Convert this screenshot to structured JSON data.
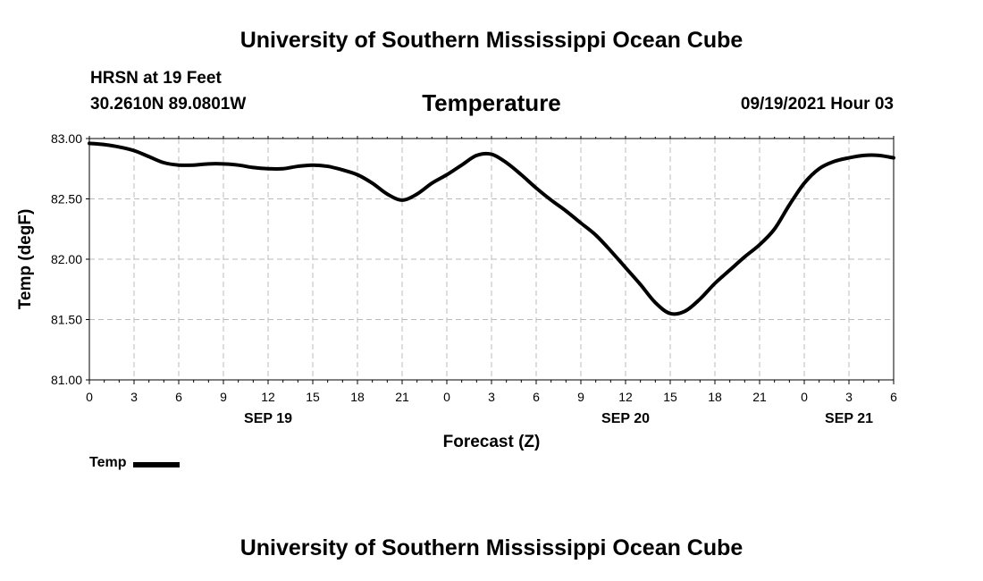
{
  "header": {
    "title": "University of Southern Mississippi Ocean Cube",
    "station": "HRSN at 19 Feet",
    "coords": "30.2610N  89.0801W",
    "variable": "Temperature",
    "run_time": "09/19/2021 Hour 03"
  },
  "footer": {
    "title": "University of Southern Mississippi Ocean Cube"
  },
  "legend": {
    "label": "Temp",
    "color": "#000000"
  },
  "chart_data": {
    "type": "line",
    "title": "Temperature",
    "xlabel": "Forecast (Z)",
    "ylabel": "Temp (degF)",
    "xlim": [
      0,
      54
    ],
    "ylim": [
      81.0,
      83.0
    ],
    "yticks": [
      "81.00",
      "81.50",
      "82.00",
      "82.50",
      "83.00"
    ],
    "ytick_values": [
      81.0,
      81.5,
      82.0,
      82.5,
      83.0
    ],
    "xtick_hours": [
      0,
      3,
      6,
      9,
      12,
      15,
      18,
      21,
      24,
      27,
      30,
      33,
      36,
      39,
      42,
      45,
      48,
      51,
      54
    ],
    "xtick_labels": [
      "0",
      "3",
      "6",
      "9",
      "12",
      "15",
      "18",
      "21",
      "0",
      "3",
      "6",
      "9",
      "12",
      "15",
      "18",
      "21",
      "0",
      "3",
      "6"
    ],
    "date_labels": [
      {
        "label": "SEP 19",
        "hour": 12
      },
      {
        "label": "SEP 20",
        "hour": 36
      },
      {
        "label": "SEP 21",
        "hour": 51
      }
    ],
    "grid": true,
    "series": [
      {
        "name": "Temp",
        "color": "#000000",
        "x": [
          0,
          1,
          2,
          3,
          4,
          5,
          6,
          7,
          8,
          9,
          10,
          11,
          12,
          13,
          14,
          15,
          16,
          17,
          18,
          19,
          20,
          21,
          22,
          23,
          24,
          25,
          26,
          27,
          28,
          29,
          30,
          31,
          32,
          33,
          34,
          35,
          36,
          37,
          38,
          39,
          40,
          41,
          42,
          43,
          44,
          45,
          46,
          47,
          48,
          49,
          50,
          51,
          52,
          53,
          54
        ],
        "values": [
          82.96,
          82.95,
          82.93,
          82.9,
          82.85,
          82.8,
          82.78,
          82.78,
          82.79,
          82.79,
          82.78,
          82.76,
          82.75,
          82.75,
          82.77,
          82.78,
          82.77,
          82.74,
          82.7,
          82.63,
          82.54,
          82.49,
          82.54,
          82.63,
          82.7,
          82.78,
          82.86,
          82.87,
          82.8,
          82.7,
          82.59,
          82.49,
          82.4,
          82.3,
          82.2,
          82.07,
          81.93,
          81.79,
          81.64,
          81.55,
          81.57,
          81.67,
          81.8,
          81.91,
          82.02,
          82.12,
          82.25,
          82.45,
          82.63,
          82.75,
          82.81,
          82.84,
          82.86,
          82.86,
          82.84
        ]
      }
    ]
  }
}
